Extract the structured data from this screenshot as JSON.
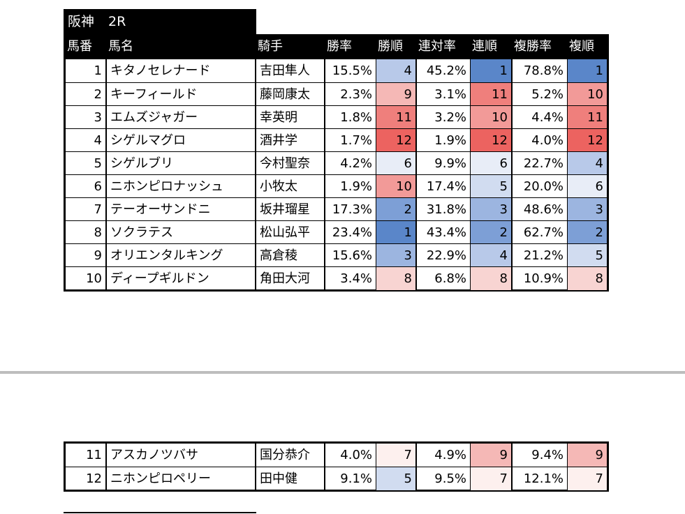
{
  "title": {
    "venue": "阪神",
    "race": "2R"
  },
  "headers": [
    "馬番",
    "馬名",
    "騎手",
    "勝率",
    "勝順",
    "連対率",
    "連順",
    "複勝率",
    "複順"
  ],
  "colors": {
    "rank_1": "#5a86c9",
    "rank_2": "#7d9fd6",
    "rank_3": "#9cb5e0",
    "rank_4": "#b8c9e9",
    "rank_5": "#d1dcf0",
    "rank_6": "#e8edf7",
    "rank_7": "#fdf0ee",
    "rank_8": "#f8d4d2",
    "rank_9": "#f5b8b6",
    "rank_10": "#f29a98",
    "rank_11": "#ef7f7c",
    "rank_12": "#ec6360"
  },
  "rows_top": [
    {
      "num": "1",
      "name": "キタノセレナード",
      "jockey": "吉田隼人",
      "win": "15.5%",
      "win_rank": "4",
      "place2": "45.2%",
      "place2_rank": "1",
      "show": "78.8%",
      "show_rank": "1"
    },
    {
      "num": "2",
      "name": "キーフィールド",
      "jockey": "藤岡康太",
      "win": "2.3%",
      "win_rank": "9",
      "place2": "3.1%",
      "place2_rank": "11",
      "show": "5.2%",
      "show_rank": "10"
    },
    {
      "num": "3",
      "name": "エムズジャガー",
      "jockey": "幸英明",
      "win": "1.8%",
      "win_rank": "11",
      "place2": "3.2%",
      "place2_rank": "10",
      "show": "4.4%",
      "show_rank": "11"
    },
    {
      "num": "4",
      "name": "シゲルマグロ",
      "jockey": "酒井学",
      "win": "1.7%",
      "win_rank": "12",
      "place2": "1.9%",
      "place2_rank": "12",
      "show": "4.0%",
      "show_rank": "12"
    },
    {
      "num": "5",
      "name": "シゲルブリ",
      "jockey": "今村聖奈",
      "win": "4.2%",
      "win_rank": "6",
      "place2": "9.9%",
      "place2_rank": "6",
      "show": "22.7%",
      "show_rank": "4"
    },
    {
      "num": "6",
      "name": "ニホンピロナッシュ",
      "jockey": "小牧太",
      "win": "1.9%",
      "win_rank": "10",
      "place2": "17.4%",
      "place2_rank": "5",
      "show": "20.0%",
      "show_rank": "6"
    },
    {
      "num": "7",
      "name": "テーオーサンドニ",
      "jockey": "坂井瑠星",
      "win": "17.3%",
      "win_rank": "2",
      "place2": "31.8%",
      "place2_rank": "3",
      "show": "48.6%",
      "show_rank": "3"
    },
    {
      "num": "8",
      "name": "ソクラテス",
      "jockey": "松山弘平",
      "win": "23.4%",
      "win_rank": "1",
      "place2": "43.4%",
      "place2_rank": "2",
      "show": "62.7%",
      "show_rank": "2"
    },
    {
      "num": "9",
      "name": "オリエンタルキング",
      "jockey": "高倉稜",
      "win": "15.6%",
      "win_rank": "3",
      "place2": "22.9%",
      "place2_rank": "4",
      "show": "21.2%",
      "show_rank": "5"
    },
    {
      "num": "10",
      "name": "ディープギルドン",
      "jockey": "角田大河",
      "win": "3.4%",
      "win_rank": "8",
      "place2": "6.8%",
      "place2_rank": "8",
      "show": "10.9%",
      "show_rank": "8"
    }
  ],
  "rows_bottom": [
    {
      "num": "11",
      "name": "アスカノツバサ",
      "jockey": "国分恭介",
      "win": "4.0%",
      "win_rank": "7",
      "place2": "4.9%",
      "place2_rank": "9",
      "show": "9.4%",
      "show_rank": "9"
    },
    {
      "num": "12",
      "name": "ニホンピロペリー",
      "jockey": "田中健",
      "win": "9.1%",
      "win_rank": "5",
      "place2": "9.5%",
      "place2_rank": "7",
      "show": "12.1%",
      "show_rank": "7"
    }
  ]
}
